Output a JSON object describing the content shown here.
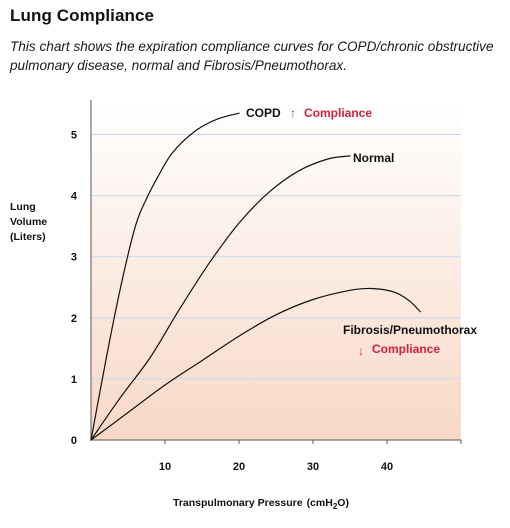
{
  "title": "Lung Compliance",
  "subtitle": "This chart shows the expiration compliance curves for COPD/chronic obstructive pulmonary disease, normal and Fibrosis/Pneumothorax.",
  "chart_data": {
    "type": "line",
    "title": "Lung Compliance",
    "xlabel": {
      "text": "Transpulmonary Pressure",
      "unit_prefix": "(cmH",
      "unit_subscript": "2",
      "unit_suffix": "O)"
    },
    "ylabel": [
      "Lung",
      "Volume",
      "(Liters)"
    ],
    "xlim": [
      0,
      50
    ],
    "ylim": [
      0,
      5.5
    ],
    "x_ticks": [
      10,
      20,
      30,
      40
    ],
    "x_tick_labels": [
      "10",
      "20",
      "30",
      "40"
    ],
    "y_ticks": [
      0,
      1,
      2,
      3,
      4,
      5
    ],
    "y_tick_labels": [
      "0",
      "1",
      "2",
      "3",
      "4",
      "5"
    ],
    "grid": "horizontal",
    "colors": {
      "curve": "#111111",
      "grid": "#c9d6ea",
      "gradient_top": "#ffffff",
      "gradient_bottom": "#f8d8c6",
      "compliance_accent": "#d21f3c"
    },
    "series": [
      {
        "name": "COPD",
        "x": [
          0,
          2,
          4,
          6,
          7.5,
          9,
          11,
          14,
          17,
          20
        ],
        "y": [
          0,
          1.3,
          2.5,
          3.5,
          3.95,
          4.3,
          4.7,
          5.05,
          5.25,
          5.35
        ]
      },
      {
        "name": "Normal",
        "x": [
          0,
          4,
          8,
          12,
          16,
          20,
          24,
          28,
          32,
          35
        ],
        "y": [
          0,
          0.7,
          1.35,
          2.15,
          2.9,
          3.55,
          4.05,
          4.4,
          4.6,
          4.65
        ]
      },
      {
        "name": "Fibrosis/Pneumothorax",
        "x": [
          0,
          5,
          10,
          15,
          20,
          25,
          30,
          35,
          38,
          41,
          43,
          44.5
        ],
        "y": [
          0,
          0.45,
          0.9,
          1.3,
          1.7,
          2.05,
          2.3,
          2.45,
          2.48,
          2.42,
          2.28,
          2.1
        ]
      }
    ],
    "annotations": {
      "copd_arrow": "↑",
      "copd_compliance": "Compliance",
      "fibrosis_arrow": "↓",
      "fibrosis_compliance": "Compliance"
    }
  }
}
